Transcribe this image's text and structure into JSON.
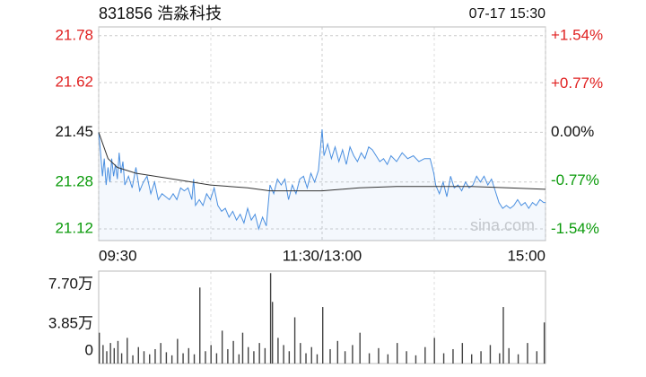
{
  "chart_data": [
    {
      "type": "line",
      "title": "831856 浩淼科技",
      "timestamp": "07-17 15:30",
      "watermark": "sina.com",
      "prev_close": 21.45,
      "up_color": "#e02020",
      "down_color": "#0a9a0a",
      "flat_color": "#111111",
      "xlim": [
        0,
        240
      ],
      "xticks": [
        {
          "value": 0,
          "label": "09:30"
        },
        {
          "value": 120,
          "label": "11:30/13:00"
        },
        {
          "value": 240,
          "label": "15:00"
        }
      ],
      "ylim": [
        21.08,
        21.81
      ],
      "yticks": [
        21.78,
        21.62,
        21.45,
        21.28,
        21.12
      ],
      "y2lim": [
        -1.72,
        1.68
      ],
      "y2ticks": [
        {
          "value": 1.54,
          "label": "+1.54%"
        },
        {
          "value": 0.77,
          "label": "+0.77%"
        },
        {
          "value": 0,
          "label": "0.00%"
        },
        {
          "value": -0.77,
          "label": "-0.77%"
        },
        {
          "value": -1.54,
          "label": "-1.54%"
        }
      ],
      "grid": true,
      "series": [
        {
          "color": "#4a8fe0",
          "x": [
            0,
            1,
            2,
            3,
            4,
            5,
            6,
            7,
            8,
            9,
            10,
            11,
            12,
            13,
            14,
            16,
            18,
            20,
            22,
            24,
            26,
            28,
            30,
            32,
            34,
            36,
            38,
            40,
            42,
            44,
            46,
            48,
            50,
            51,
            52,
            54,
            56,
            58,
            60,
            62,
            64,
            66,
            68,
            70,
            72,
            74,
            76,
            78,
            80,
            82,
            84,
            86,
            88,
            90,
            92,
            94,
            96,
            98,
            100,
            102,
            104,
            106,
            108,
            110,
            112,
            114,
            116,
            118,
            120,
            121,
            123,
            125,
            127,
            129,
            131,
            133,
            135,
            137,
            139,
            141,
            143,
            145,
            147,
            149,
            151,
            153,
            155,
            157,
            160,
            163,
            166,
            169,
            172,
            175,
            178,
            180,
            181,
            183,
            185,
            187,
            189,
            191,
            193,
            195,
            197,
            199,
            201,
            203,
            205,
            207,
            209,
            211,
            213,
            215,
            217,
            219,
            221,
            223,
            225,
            227,
            229,
            231,
            233,
            235,
            237,
            239,
            240
          ],
          "values": [
            21.45,
            21.38,
            21.3,
            21.36,
            21.27,
            21.33,
            21.28,
            21.36,
            21.3,
            21.34,
            21.29,
            21.38,
            21.31,
            21.35,
            21.27,
            21.3,
            21.26,
            21.33,
            21.25,
            21.28,
            21.3,
            21.24,
            21.28,
            21.22,
            21.24,
            21.23,
            21.22,
            21.24,
            21.22,
            21.26,
            21.25,
            21.26,
            21.22,
            21.29,
            21.2,
            21.22,
            21.2,
            21.24,
            21.22,
            21.26,
            21.2,
            21.18,
            21.19,
            21.16,
            21.18,
            21.15,
            21.17,
            21.14,
            21.19,
            21.15,
            21.17,
            21.12,
            21.16,
            21.13,
            21.27,
            21.24,
            21.29,
            21.27,
            21.29,
            21.22,
            21.27,
            21.24,
            21.29,
            21.3,
            21.26,
            21.31,
            21.28,
            21.32,
            21.46,
            21.37,
            21.41,
            21.36,
            21.4,
            21.35,
            21.39,
            21.34,
            21.4,
            21.37,
            21.35,
            21.38,
            21.36,
            21.4,
            21.39,
            21.37,
            21.35,
            21.36,
            21.34,
            21.37,
            21.35,
            21.38,
            21.36,
            21.37,
            21.35,
            21.36,
            21.36,
            21.31,
            21.27,
            21.24,
            21.28,
            21.23,
            21.3,
            21.26,
            21.27,
            21.25,
            21.28,
            21.26,
            21.27,
            21.3,
            21.28,
            21.3,
            21.27,
            21.29,
            21.25,
            21.21,
            21.19,
            21.2,
            21.19,
            21.2,
            21.22,
            21.2,
            21.21,
            21.19,
            21.21,
            21.2,
            21.22,
            21.21,
            21.21
          ]
        },
        {
          "color": "#333333",
          "x": [
            0,
            5,
            10,
            20,
            30,
            40,
            60,
            80,
            92,
            100,
            120,
            140,
            160,
            180,
            200,
            220,
            240
          ],
          "values": [
            21.45,
            21.36,
            21.33,
            21.31,
            21.3,
            21.29,
            21.27,
            21.26,
            21.25,
            21.25,
            21.25,
            21.26,
            21.265,
            21.265,
            21.265,
            21.26,
            21.255
          ]
        }
      ]
    },
    {
      "type": "bar",
      "color": "#444444",
      "xlim": [
        0,
        240
      ],
      "ylim": [
        0,
        90000
      ],
      "yticks": [
        {
          "value": 77000,
          "label": "7.70万"
        },
        {
          "value": 38500,
          "label": "3.85万"
        },
        0
      ],
      "x": [
        0,
        2,
        4,
        6,
        8,
        10,
        12,
        15,
        18,
        21,
        24,
        27,
        30,
        33,
        36,
        39,
        42,
        45,
        48,
        51,
        54,
        57,
        60,
        63,
        66,
        69,
        72,
        75,
        77,
        80,
        83,
        86,
        89,
        92,
        93,
        96,
        99,
        102,
        105,
        108,
        111,
        114,
        117,
        120,
        124,
        128,
        132,
        136,
        140,
        145,
        150,
        155,
        160,
        165,
        170,
        175,
        180,
        185,
        190,
        195,
        200,
        205,
        210,
        215,
        217,
        220,
        225,
        230,
        235,
        239
      ],
      "values": [
        30000,
        18000,
        12000,
        20000,
        15000,
        22000,
        10000,
        25000,
        8000,
        16000,
        12000,
        9000,
        14000,
        20000,
        11000,
        8000,
        24000,
        10000,
        15000,
        9000,
        74000,
        12000,
        18000,
        10000,
        32000,
        14000,
        22000,
        9000,
        30000,
        16000,
        12000,
        20000,
        15000,
        88000,
        60000,
        25000,
        18000,
        12000,
        45000,
        20000,
        10000,
        16000,
        9000,
        55000,
        14000,
        22000,
        12000,
        18000,
        30000,
        10000,
        15000,
        9000,
        20000,
        12000,
        8000,
        16000,
        25000,
        10000,
        14000,
        20000,
        9000,
        12000,
        18000,
        10000,
        55000,
        15000,
        9000,
        20000,
        12000,
        40000
      ]
    }
  ]
}
